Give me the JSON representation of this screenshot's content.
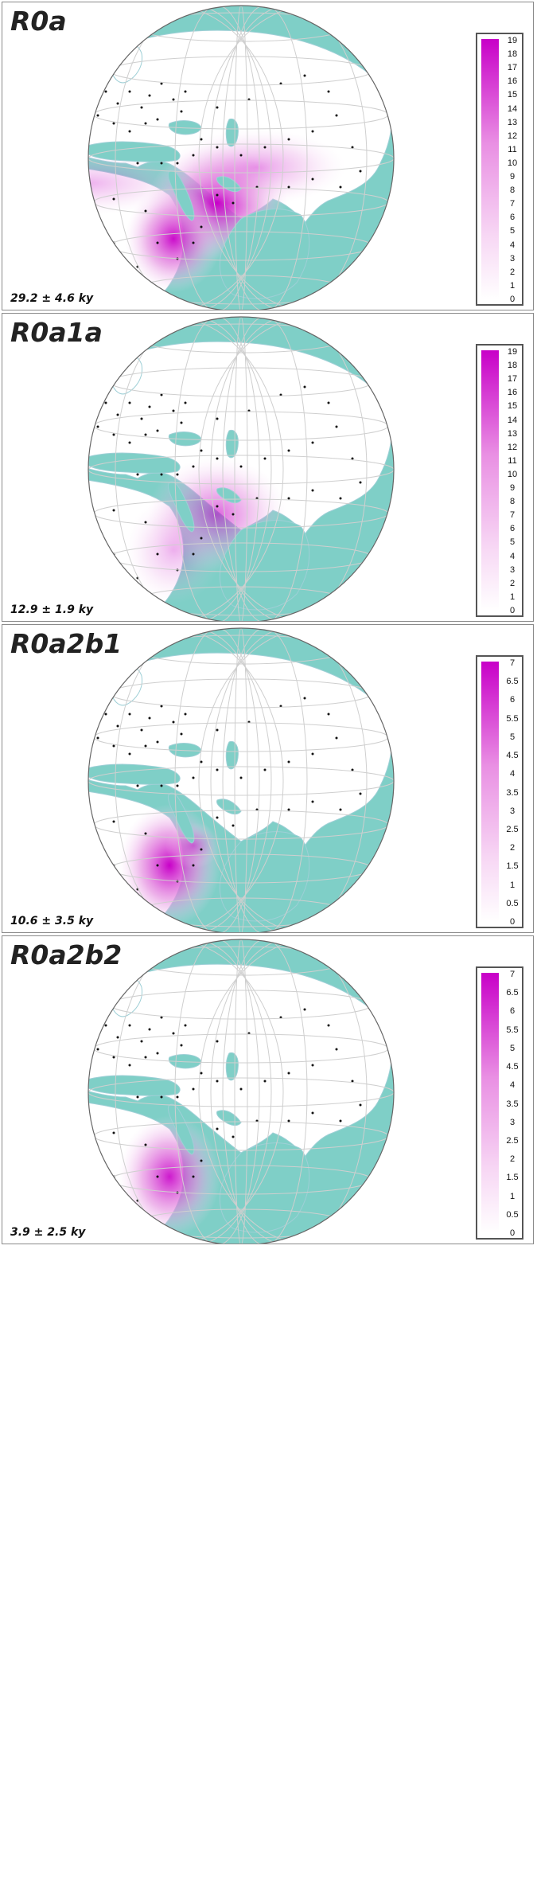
{
  "colors": {
    "ocean": "#7fcfc7",
    "land": "#ffffff",
    "border": "#9ecfd6",
    "graticule": "#cfcfcf",
    "hotspot": "#c800c8"
  },
  "panels": [
    {
      "title": "R0a",
      "age": "29.2 ± 4.6 ky",
      "scale": {
        "min": 0,
        "max": 19,
        "ticks": [
          "19",
          "18",
          "17",
          "16",
          "15",
          "14",
          "13",
          "12",
          "11",
          "10",
          "9",
          "8",
          "7",
          "6",
          "5",
          "4",
          "3",
          "2",
          "1",
          "0"
        ]
      },
      "hotspots": [
        {
          "region": "Arabian Peninsula",
          "intensity": 1.0
        },
        {
          "region": "Horn of Africa",
          "intensity": 0.9
        },
        {
          "region": "Iran",
          "intensity": 0.35
        },
        {
          "region": "North Africa",
          "intensity": 0.25
        }
      ]
    },
    {
      "title": "R0a1a",
      "age": "12.9 ± 1.9 ky",
      "scale": {
        "min": 0,
        "max": 19,
        "ticks": [
          "19",
          "18",
          "17",
          "16",
          "15",
          "14",
          "13",
          "12",
          "11",
          "10",
          "9",
          "8",
          "7",
          "6",
          "5",
          "4",
          "3",
          "2",
          "1",
          "0"
        ]
      },
      "hotspots": [
        {
          "region": "Arabian Peninsula",
          "intensity": 0.55
        },
        {
          "region": "Horn of Africa",
          "intensity": 0.25
        }
      ]
    },
    {
      "title": "R0a2b1",
      "age": "10.6 ± 3.5 ky",
      "scale": {
        "min": 0,
        "max": 7,
        "ticks": [
          "7",
          "6.5",
          "6",
          "5.5",
          "5",
          "4.5",
          "4",
          "3.5",
          "3",
          "2.5",
          "2",
          "1.5",
          "1",
          "0.5",
          "0"
        ]
      },
      "hotspots": [
        {
          "region": "Ethiopia",
          "intensity": 1.0
        },
        {
          "region": "Yemen",
          "intensity": 0.4
        }
      ]
    },
    {
      "title": "R0a2b2",
      "age": "3.9 ± 2.5 ky",
      "scale": {
        "min": 0,
        "max": 7,
        "ticks": [
          "7",
          "6.5",
          "6",
          "5.5",
          "5",
          "4.5",
          "4",
          "3.5",
          "3",
          "2.5",
          "2",
          "1.5",
          "1",
          "0.5",
          "0"
        ]
      },
      "hotspots": [
        {
          "region": "Ethiopia",
          "intensity": 0.85
        }
      ]
    }
  ]
}
